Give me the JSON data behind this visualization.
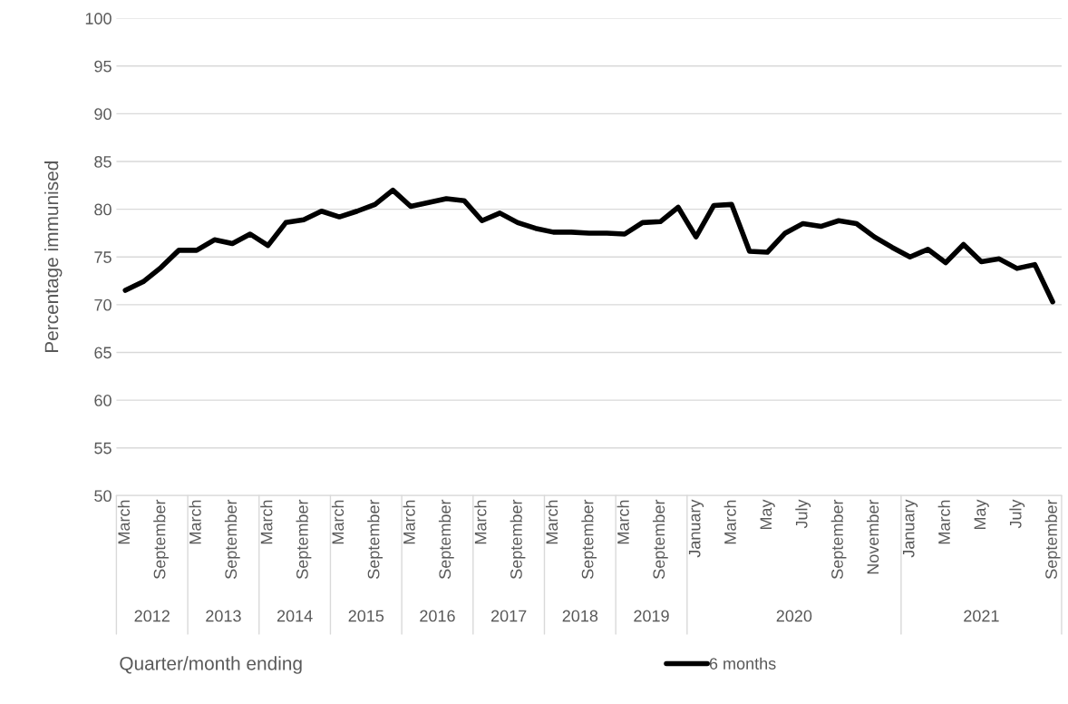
{
  "chart_data": {
    "type": "line",
    "ylabel": "Percentage immunised",
    "xlabel": "Quarter/month ending",
    "categories": [
      "March",
      null,
      "September",
      null,
      "March",
      null,
      "September",
      null,
      "March",
      null,
      "September",
      null,
      "March",
      null,
      "September",
      null,
      "March",
      null,
      "September",
      null,
      "March",
      null,
      "September",
      null,
      "March",
      null,
      "September",
      null,
      "March",
      null,
      "September",
      null,
      "January",
      null,
      "March",
      null,
      "May",
      null,
      "July",
      null,
      "September",
      null,
      "November",
      null,
      "January",
      null,
      "March",
      null,
      "May",
      null,
      "July",
      null,
      "September"
    ],
    "series": [
      {
        "name": "6 months",
        "color": "#000000",
        "values": [
          71.5,
          72.4,
          73.9,
          75.7,
          75.7,
          76.8,
          76.4,
          77.4,
          76.2,
          78.6,
          78.9,
          79.8,
          79.2,
          79.8,
          80.5,
          82.0,
          80.3,
          80.7,
          81.1,
          80.9,
          78.8,
          79.6,
          78.6,
          78.0,
          77.6,
          77.6,
          77.5,
          77.5,
          77.4,
          78.6,
          78.7,
          80.2,
          77.1,
          80.4,
          80.5,
          75.6,
          75.5,
          77.5,
          78.5,
          78.2,
          78.8,
          78.5,
          77.1,
          76.0,
          75.0,
          75.8,
          74.4,
          76.3,
          74.5,
          74.8,
          73.8,
          74.2,
          70.3
        ]
      }
    ],
    "annotations": [
      "2012",
      "2013",
      "2014",
      "2015",
      "2016",
      "2017",
      "2018",
      "2019",
      "2020",
      "2021"
    ],
    "ylim": [
      50,
      100
    ],
    "yticks": [
      50,
      55,
      60,
      65,
      70,
      75,
      80,
      85,
      90,
      95,
      100
    ],
    "grid": "y",
    "legend": "bottom",
    "marker": "none",
    "line_style": "solid"
  }
}
